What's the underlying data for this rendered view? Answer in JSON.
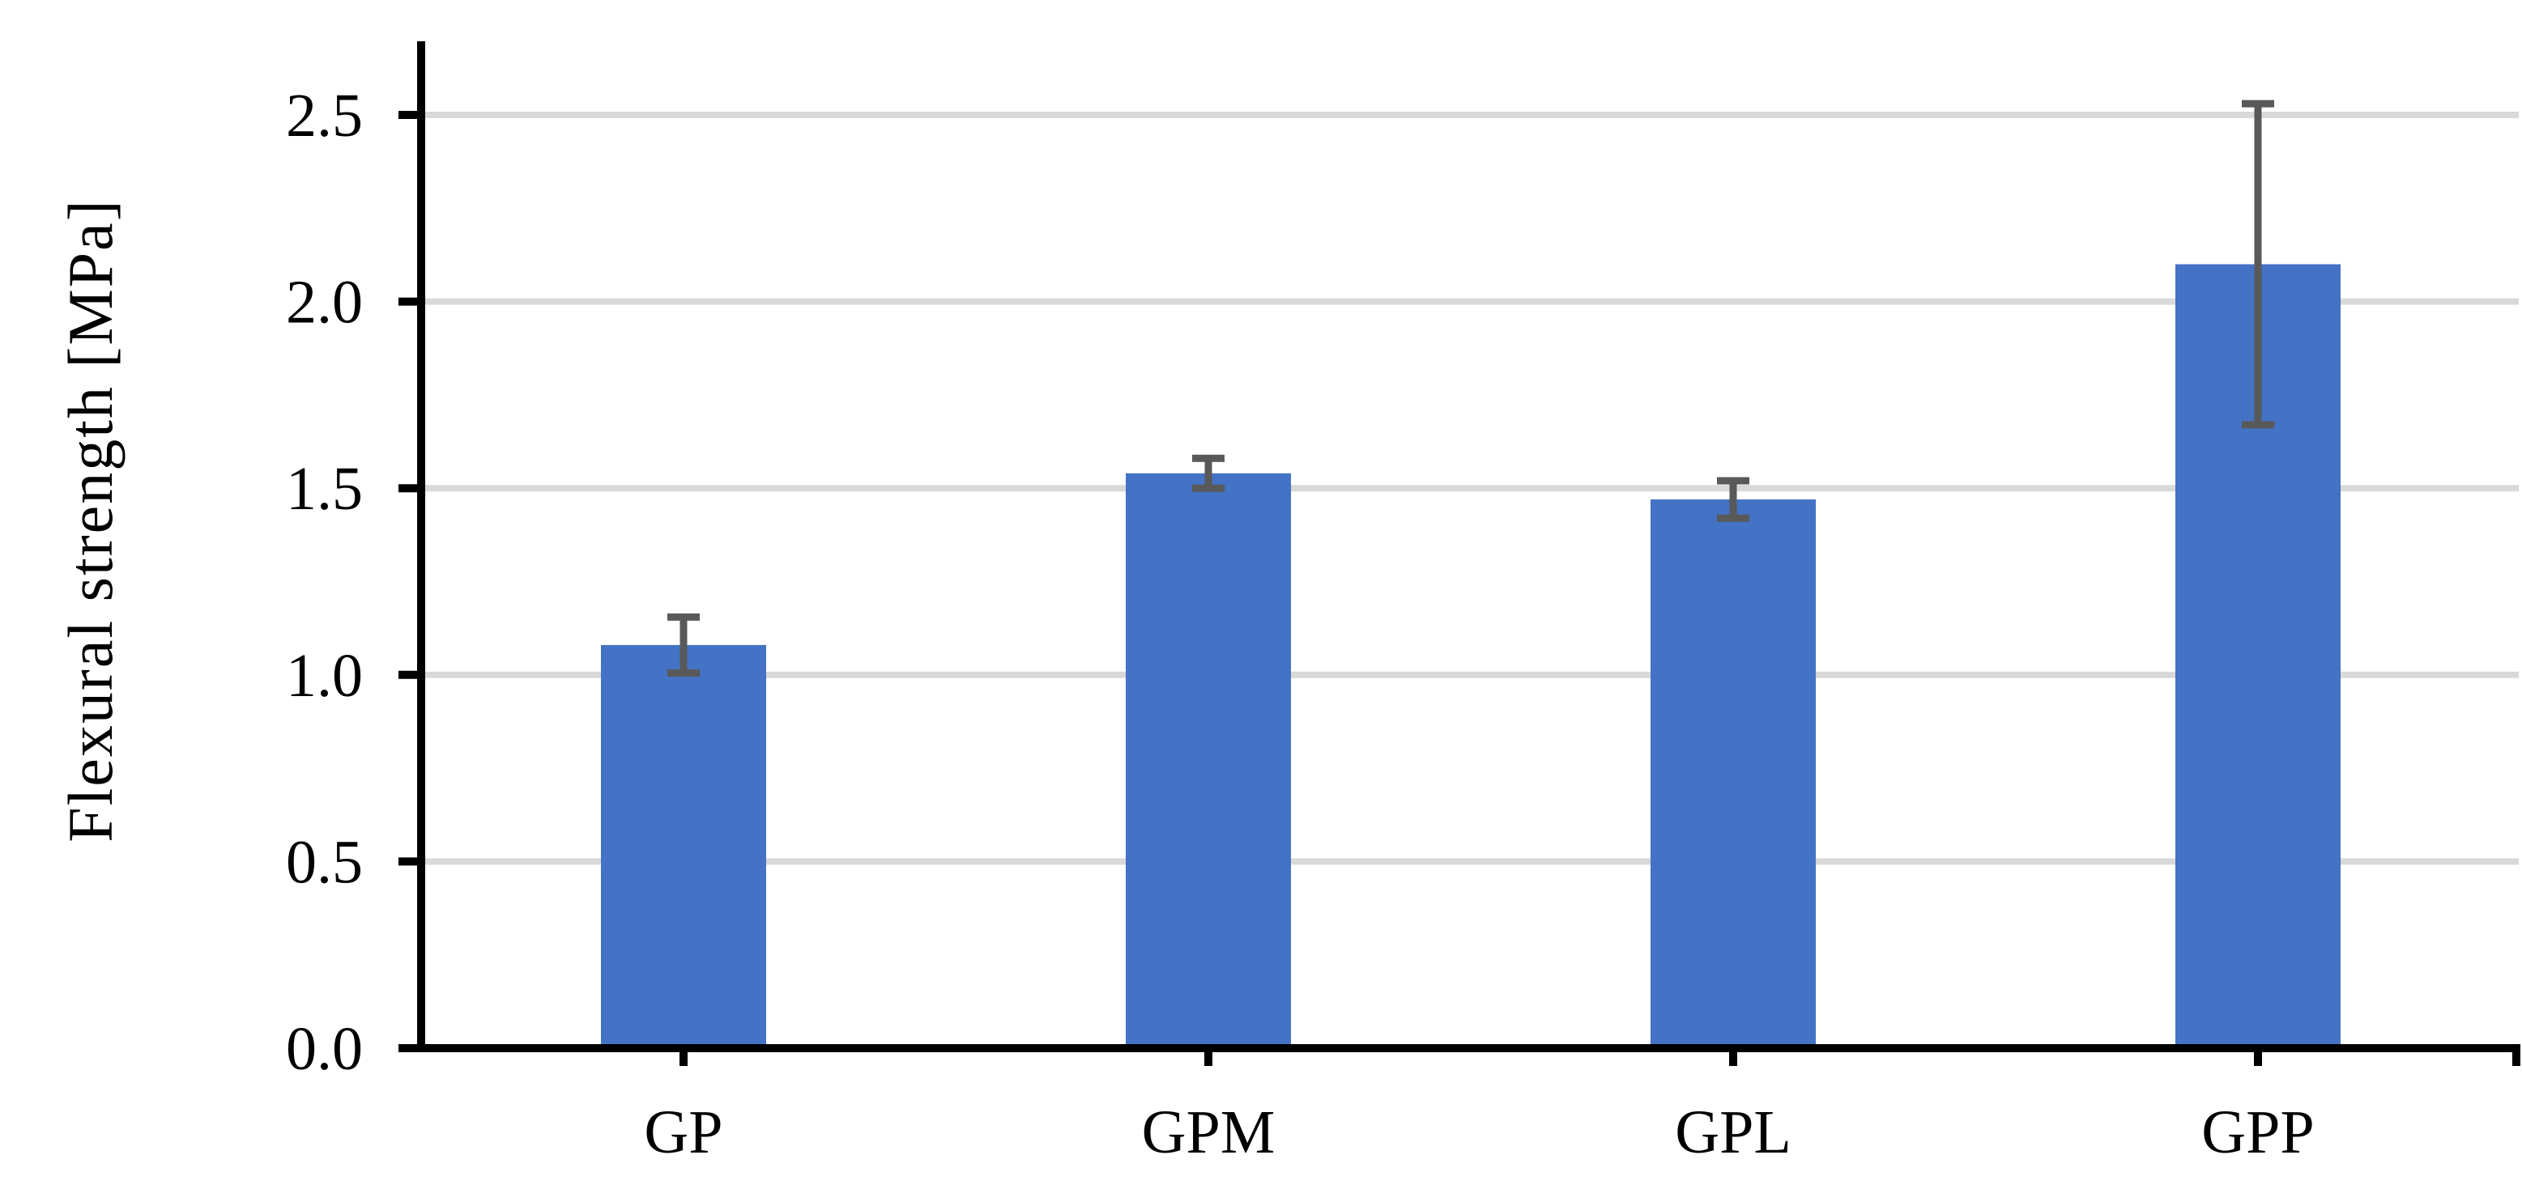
{
  "figure": {
    "background": "#ffffff"
  },
  "chart_data": {
    "type": "bar",
    "title": "",
    "categories": [
      "GP",
      "GPM",
      "GPL",
      "GPP"
    ],
    "values": [
      1.08,
      1.54,
      1.47,
      2.1
    ],
    "error_bars": [
      0.075,
      0.04,
      0.05,
      0.43
    ],
    "xlabel": "",
    "ylabel": "Flexural strength [MPa]",
    "ylim": [
      0,
      2.7
    ],
    "yticks": [
      0,
      0.5,
      1.0,
      1.5,
      2.0,
      2.5
    ],
    "ytick_labels": [
      "0.0",
      "0.5",
      "1.0",
      "1.5",
      "2.0",
      "2.5"
    ],
    "grid": "horizontal",
    "legend": "none",
    "colors": {
      "bar": "#4472C4",
      "error_bar": "#595959",
      "gridline": "#D9D9D9",
      "axis": "#000000",
      "text": "#000000"
    }
  }
}
